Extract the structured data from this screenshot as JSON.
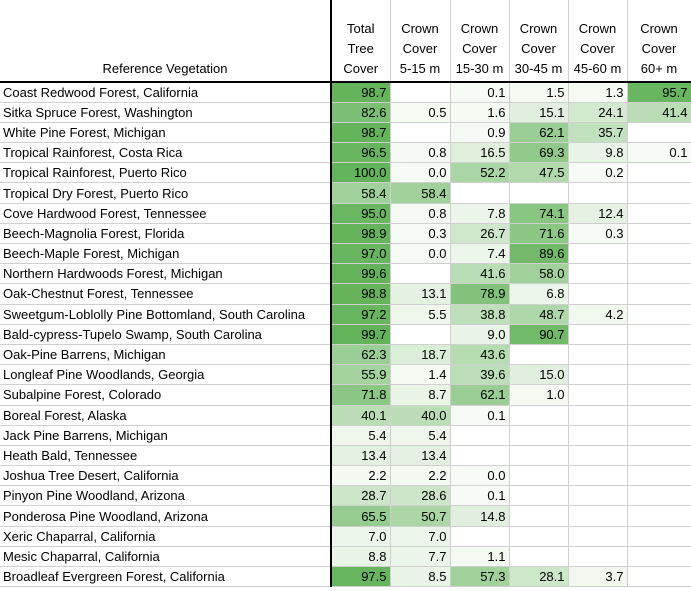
{
  "table": {
    "headers": {
      "name": "Reference Vegetation",
      "columns": [
        [
          "Total",
          "Tree",
          "Cover"
        ],
        [
          "Crown",
          "Cover",
          "5-15 m"
        ],
        [
          "Crown",
          "Cover",
          "15-30 m"
        ],
        [
          "Crown",
          "Cover",
          "30-45 m"
        ],
        [
          "Crown",
          "Cover",
          "45-60 m"
        ],
        [
          "Crown",
          "Cover",
          "60+ m"
        ]
      ]
    },
    "rows": [
      {
        "name": "Coast Redwood Forest, California",
        "values": [
          "98.7",
          "",
          "0.1",
          "1.5",
          "1.3",
          "95.7"
        ]
      },
      {
        "name": "Sitka Spruce Forest, Washington",
        "values": [
          "82.6",
          "0.5",
          "1.6",
          "15.1",
          "24.1",
          "41.4"
        ]
      },
      {
        "name": "White Pine Forest, Michigan",
        "values": [
          "98.7",
          "",
          "0.9",
          "62.1",
          "35.7",
          ""
        ]
      },
      {
        "name": "Tropical Rainforest, Costa Rica",
        "values": [
          "96.5",
          "0.8",
          "16.5",
          "69.3",
          "9.8",
          "0.1"
        ]
      },
      {
        "name": "Tropical Rainforest, Puerto Rico",
        "values": [
          "100.0",
          "0.0",
          "52.2",
          "47.5",
          "0.2",
          ""
        ]
      },
      {
        "name": "Tropical Dry Forest, Puerto Rico",
        "values": [
          "58.4",
          "58.4",
          "",
          "",
          "",
          ""
        ]
      },
      {
        "name": "Cove Hardwood Forest, Tennessee",
        "values": [
          "95.0",
          "0.8",
          "7.8",
          "74.1",
          "12.4",
          ""
        ]
      },
      {
        "name": "Beech-Magnolia Forest, Florida",
        "values": [
          "98.9",
          "0.3",
          "26.7",
          "71.6",
          "0.3",
          ""
        ]
      },
      {
        "name": "Beech-Maple Forest, Michigan",
        "values": [
          "97.0",
          "0.0",
          "7.4",
          "89.6",
          "",
          ""
        ]
      },
      {
        "name": "Northern Hardwoods Forest, Michigan",
        "values": [
          "99.6",
          "",
          "41.6",
          "58.0",
          "",
          ""
        ]
      },
      {
        "name": "Oak-Chestnut Forest, Tennessee",
        "values": [
          "98.8",
          "13.1",
          "78.9",
          "6.8",
          "",
          ""
        ]
      },
      {
        "name": "Sweetgum-Loblolly Pine Bottomland, South Carolina",
        "values": [
          "97.2",
          "5.5",
          "38.8",
          "48.7",
          "4.2",
          ""
        ]
      },
      {
        "name": "Bald-cypress-Tupelo Swamp, South Carolina",
        "values": [
          "99.7",
          "",
          "9.0",
          "90.7",
          "",
          ""
        ]
      },
      {
        "name": "Oak-Pine Barrens, Michigan",
        "values": [
          "62.3",
          "18.7",
          "43.6",
          "",
          "",
          ""
        ]
      },
      {
        "name": "Longleaf Pine Woodlands, Georgia",
        "values": [
          "55.9",
          "1.4",
          "39.6",
          "15.0",
          "",
          ""
        ]
      },
      {
        "name": "Subalpine Forest, Colorado",
        "values": [
          "71.8",
          "8.7",
          "62.1",
          "1.0",
          "",
          ""
        ]
      },
      {
        "name": "Boreal Forest, Alaska",
        "values": [
          "40.1",
          "40.0",
          "0.1",
          "",
          "",
          ""
        ]
      },
      {
        "name": "Jack Pine Barrens, Michigan",
        "values": [
          "5.4",
          "5.4",
          "",
          "",
          "",
          ""
        ]
      },
      {
        "name": "Heath Bald, Tennessee",
        "values": [
          "13.4",
          "13.4",
          "",
          "",
          "",
          ""
        ]
      },
      {
        "name": "Joshua Tree Desert, California",
        "values": [
          "2.2",
          "2.2",
          "0.0",
          "",
          "",
          ""
        ]
      },
      {
        "name": "Pinyon Pine Woodland, Arizona",
        "values": [
          "28.7",
          "28.6",
          "0.1",
          "",
          "",
          ""
        ]
      },
      {
        "name": "Ponderosa Pine Woodland, Arizona",
        "values": [
          "65.5",
          "50.7",
          "14.8",
          "",
          "",
          ""
        ]
      },
      {
        "name": "Xeric Chaparral, California",
        "values": [
          "7.0",
          "7.0",
          "",
          "",
          "",
          ""
        ]
      },
      {
        "name": "Mesic Chaparral, California",
        "values": [
          "8.8",
          "7.7",
          "1.1",
          "",
          "",
          ""
        ]
      },
      {
        "name": "Broadleaf Evergreen Forest, California",
        "values": [
          "97.5",
          "8.5",
          "57.3",
          "28.1",
          "3.7",
          ""
        ]
      }
    ]
  },
  "colors": {
    "scale_low": "#f7fbf5",
    "scale_high": "#63b35a"
  }
}
